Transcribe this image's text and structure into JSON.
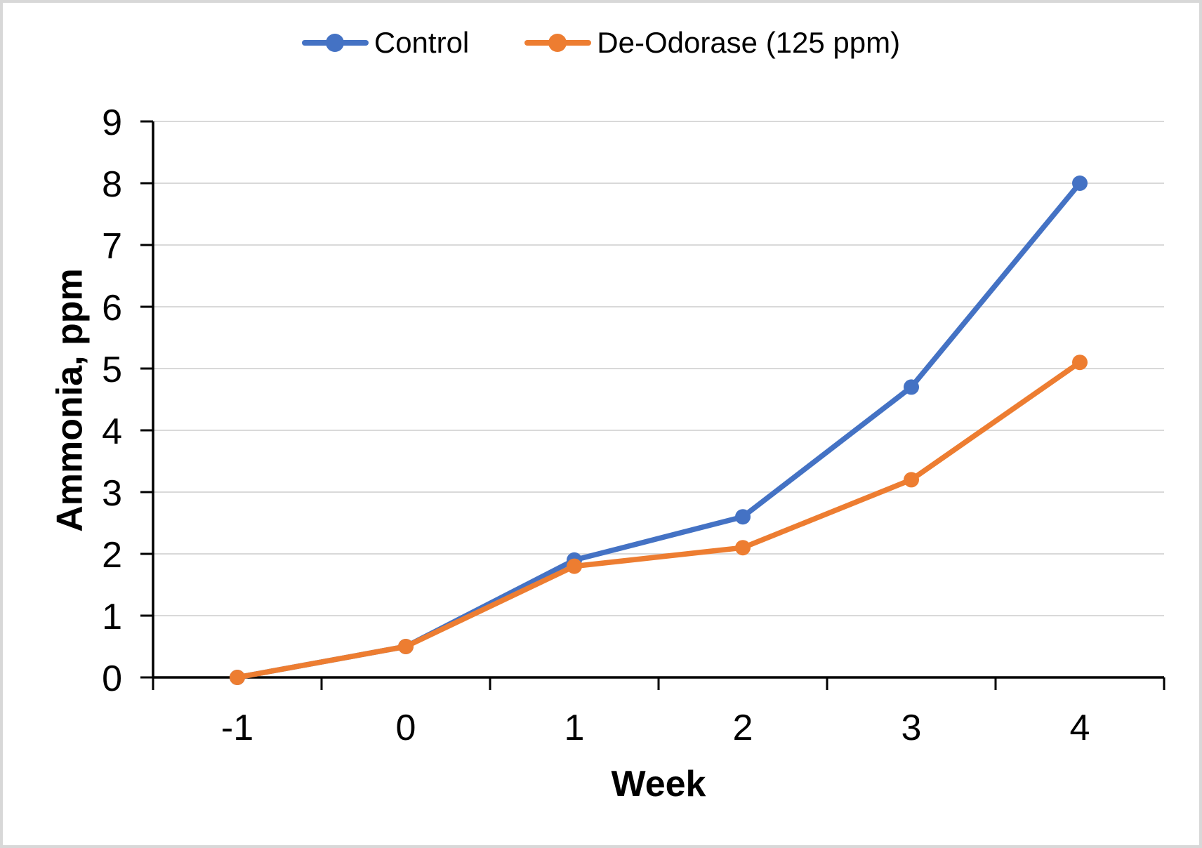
{
  "page": {
    "background": "#FFFFFF",
    "border_color": "#D8D8D8"
  },
  "chart_data": {
    "type": "line",
    "title": "",
    "categories": [
      "-1",
      "0",
      "1",
      "2",
      "3",
      "4"
    ],
    "series": [
      {
        "name": "Control",
        "color": "#4472C4",
        "values": [
          0,
          0.5,
          1.9,
          2.6,
          4.7,
          8.0
        ]
      },
      {
        "name": "De-Odorase (125 ppm)",
        "color": "#ED7D31",
        "values": [
          0,
          0.5,
          1.8,
          2.1,
          3.2,
          5.1
        ]
      }
    ],
    "xlabel": "Week",
    "ylabel": "Ammonia, ppm",
    "ylim": [
      0,
      9
    ],
    "yticks": [
      0,
      1,
      2,
      3,
      4,
      5,
      6,
      7,
      8,
      9
    ],
    "grid": "horizontal",
    "gridline_color": "#D9D9D9",
    "axis_color": "#000000",
    "text_color": "#000000",
    "legend_position": "top",
    "marker": "circle"
  }
}
